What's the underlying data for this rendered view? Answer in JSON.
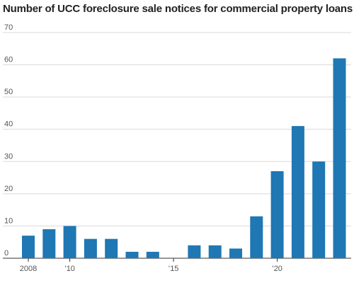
{
  "chart_data": {
    "type": "bar",
    "title": "Number of UCC foreclosure sale notices for commercial property loans",
    "xlabel": "",
    "ylabel": "",
    "ylim": [
      0,
      70
    ],
    "yticks": [
      0,
      10,
      20,
      30,
      40,
      50,
      60,
      70
    ],
    "grid": true,
    "bar_color": "#1f77b4",
    "categories": [
      2008,
      2009,
      2010,
      2011,
      2012,
      2013,
      2014,
      2015,
      2016,
      2017,
      2018,
      2019,
      2020,
      2021,
      2022,
      2023
    ],
    "values": [
      7,
      9,
      10,
      6,
      6,
      2,
      2,
      0,
      4,
      4,
      3,
      13,
      27,
      41,
      30,
      62
    ],
    "xtick_labels": [
      {
        "year": 2008,
        "label": "2008"
      },
      {
        "year": 2010,
        "label": "’10"
      },
      {
        "year": 2015,
        "label": "’15"
      },
      {
        "year": 2020,
        "label": "’20"
      }
    ]
  }
}
